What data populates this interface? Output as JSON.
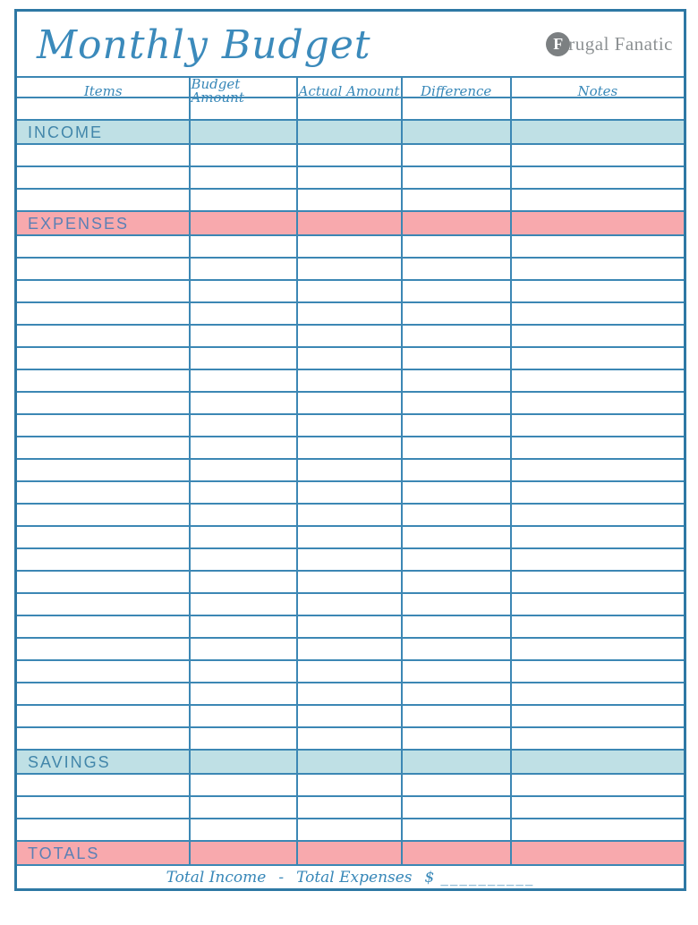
{
  "page": {
    "title": "Monthly Budget",
    "brand": {
      "full_name": "Frugal Fanatic",
      "initial": "F",
      "rest": "rugal Fanatic"
    }
  },
  "colors": {
    "line_blue": "#3c87b4",
    "script_blue": "#3b8abb",
    "teal_band": "#bfe0e5",
    "pink_band": "#f8a9ad",
    "brand_gray": "#8d9193"
  },
  "table": {
    "columns": [
      "Items",
      "Budget Amount",
      "Actual Amount",
      "Difference",
      "Notes"
    ],
    "sections": [
      {
        "kind": "blank",
        "rows": 1
      },
      {
        "kind": "band",
        "label": "INCOME",
        "bg": "#bfe0e5",
        "fg": "#4286aa"
      },
      {
        "kind": "blank",
        "rows": 3
      },
      {
        "kind": "band",
        "label": "EXPENSES",
        "bg": "#f8a9ad",
        "fg": "#5b80b5"
      },
      {
        "kind": "blank",
        "rows": 23
      },
      {
        "kind": "band",
        "label": "SAVINGS",
        "bg": "#bfe0e5",
        "fg": "#4286aa"
      },
      {
        "kind": "blank",
        "rows": 3
      },
      {
        "kind": "band",
        "label": "TOTALS",
        "bg": "#f8a9ad",
        "fg": "#5b80b5"
      }
    ],
    "footer": {
      "income_label": "Total Income",
      "minus": "-",
      "expenses_label": "Total Expenses",
      "currency": "$",
      "blank": "__________"
    }
  }
}
